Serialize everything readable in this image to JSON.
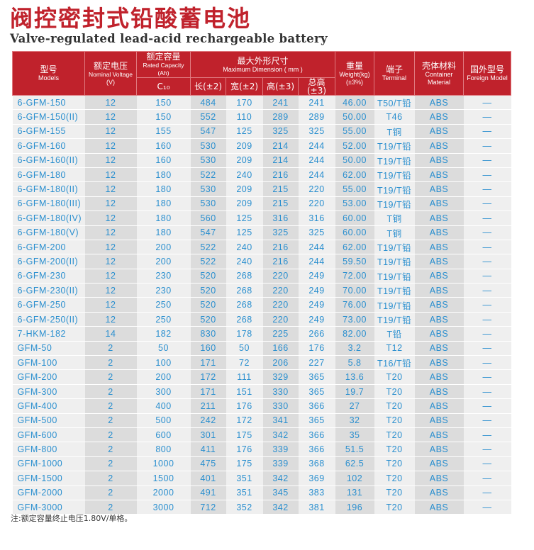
{
  "title_cn": "阀控密封式铅酸蓄电池",
  "title_en": "Valve-regulated lead-acid rechargeable battery",
  "headers": {
    "model": {
      "cn": "型号",
      "en": "Models"
    },
    "voltage": {
      "cn": "额定电压",
      "en": "Nominal Voltage",
      "unit": "(V)"
    },
    "capacity": {
      "cn": "额定容量",
      "en": "Rated Capacity (Ah)",
      "sub": "C₁₀"
    },
    "dimension": {
      "cn": "最大外形尺寸",
      "en": "Maximum Dimension ( mm )",
      "length": "长(±2)",
      "width": "宽(±2)",
      "height": "高(±3)",
      "total_height": "总高(±3)"
    },
    "weight": {
      "cn": "重量",
      "en": "Weight(kg)",
      "unit": "(±3%)"
    },
    "terminal": {
      "cn": "端子",
      "en": "Terminal"
    },
    "material": {
      "cn": "壳体材料",
      "en": "Container Material"
    },
    "foreign": {
      "cn": "国外型号",
      "en": "Foreign Model"
    }
  },
  "rows": [
    [
      "6-GFM-150",
      "12",
      "150",
      "484",
      "170",
      "241",
      "241",
      "46.00",
      "T50/T铅",
      "ABS",
      "—"
    ],
    [
      "6-GFM-150(II)",
      "12",
      "150",
      "552",
      "110",
      "289",
      "289",
      "50.00",
      "T46",
      "ABS",
      "—"
    ],
    [
      "6-GFM-155",
      "12",
      "155",
      "547",
      "125",
      "325",
      "325",
      "55.00",
      "T铜",
      "ABS",
      "—"
    ],
    [
      "6-GFM-160",
      "12",
      "160",
      "530",
      "209",
      "214",
      "244",
      "52.00",
      "T19/T铅",
      "ABS",
      "—"
    ],
    [
      "6-GFM-160(II)",
      "12",
      "160",
      "530",
      "209",
      "214",
      "244",
      "50.00",
      "T19/T铅",
      "ABS",
      "—"
    ],
    [
      "6-GFM-180",
      "12",
      "180",
      "522",
      "240",
      "216",
      "244",
      "62.00",
      "T19/T铅",
      "ABS",
      "—"
    ],
    [
      "6-GFM-180(II)",
      "12",
      "180",
      "530",
      "209",
      "215",
      "220",
      "55.00",
      "T19/T铅",
      "ABS",
      "—"
    ],
    [
      "6-GFM-180(III)",
      "12",
      "180",
      "530",
      "209",
      "215",
      "220",
      "53.00",
      "T19/T铅",
      "ABS",
      "—"
    ],
    [
      "6-GFM-180(IV)",
      "12",
      "180",
      "560",
      "125",
      "316",
      "316",
      "60.00",
      "T铜",
      "ABS",
      "—"
    ],
    [
      "6-GFM-180(V)",
      "12",
      "180",
      "547",
      "125",
      "325",
      "325",
      "60.00",
      "T铜",
      "ABS",
      "—"
    ],
    [
      "6-GFM-200",
      "12",
      "200",
      "522",
      "240",
      "216",
      "244",
      "62.00",
      "T19/T铅",
      "ABS",
      "—"
    ],
    [
      "6-GFM-200(II)",
      "12",
      "200",
      "522",
      "240",
      "216",
      "244",
      "59.50",
      "T19/T铅",
      "ABS",
      "—"
    ],
    [
      "6-GFM-230",
      "12",
      "230",
      "520",
      "268",
      "220",
      "249",
      "72.00",
      "T19/T铅",
      "ABS",
      "—"
    ],
    [
      "6-GFM-230(II)",
      "12",
      "230",
      "520",
      "268",
      "220",
      "249",
      "70.00",
      "T19/T铅",
      "ABS",
      "—"
    ],
    [
      "6-GFM-250",
      "12",
      "250",
      "520",
      "268",
      "220",
      "249",
      "76.00",
      "T19/T铅",
      "ABS",
      "—"
    ],
    [
      "6-GFM-250(II)",
      "12",
      "250",
      "520",
      "268",
      "220",
      "249",
      "73.00",
      "T19/T铅",
      "ABS",
      "—"
    ],
    [
      "7-HKM-182",
      "14",
      "182",
      "830",
      "178",
      "225",
      "266",
      "82.00",
      "T铅",
      "ABS",
      "—"
    ],
    [
      "GFM-50",
      "2",
      "50",
      "160",
      "50",
      "166",
      "176",
      "3.2",
      "T12",
      "ABS",
      "—"
    ],
    [
      "GFM-100",
      "2",
      "100",
      "171",
      "72",
      "206",
      "227",
      "5.8",
      "T16/T铅",
      "ABS",
      "—"
    ],
    [
      "GFM-200",
      "2",
      "200",
      "172",
      "111",
      "329",
      "365",
      "13.6",
      "T20",
      "ABS",
      "—"
    ],
    [
      "GFM-300",
      "2",
      "300",
      "171",
      "151",
      "330",
      "365",
      "19.7",
      "T20",
      "ABS",
      "—"
    ],
    [
      "GFM-400",
      "2",
      "400",
      "211",
      "176",
      "330",
      "366",
      "27",
      "T20",
      "ABS",
      "—"
    ],
    [
      "GFM-500",
      "2",
      "500",
      "242",
      "172",
      "341",
      "365",
      "32",
      "T20",
      "ABS",
      "—"
    ],
    [
      "GFM-600",
      "2",
      "600",
      "301",
      "175",
      "342",
      "366",
      "35",
      "T20",
      "ABS",
      "—"
    ],
    [
      "GFM-800",
      "2",
      "800",
      "411",
      "176",
      "339",
      "366",
      "51.5",
      "T20",
      "ABS",
      "—"
    ],
    [
      "GFM-1000",
      "2",
      "1000",
      "475",
      "175",
      "339",
      "368",
      "62.5",
      "T20",
      "ABS",
      "—"
    ],
    [
      "GFM-1500",
      "2",
      "1500",
      "401",
      "351",
      "342",
      "369",
      "102",
      "T20",
      "ABS",
      "—"
    ],
    [
      "GFM-2000",
      "2",
      "2000",
      "491",
      "351",
      "345",
      "383",
      "131",
      "T20",
      "ABS",
      "—"
    ],
    [
      "GFM-3000",
      "2",
      "3000",
      "712",
      "352",
      "342",
      "381",
      "196",
      "T20",
      "ABS",
      "—"
    ]
  ],
  "note": "注:额定容量终止电压1.80V/单格。",
  "colors": {
    "header_red": "#c0222c",
    "value_blue": "#2a8fcf"
  }
}
